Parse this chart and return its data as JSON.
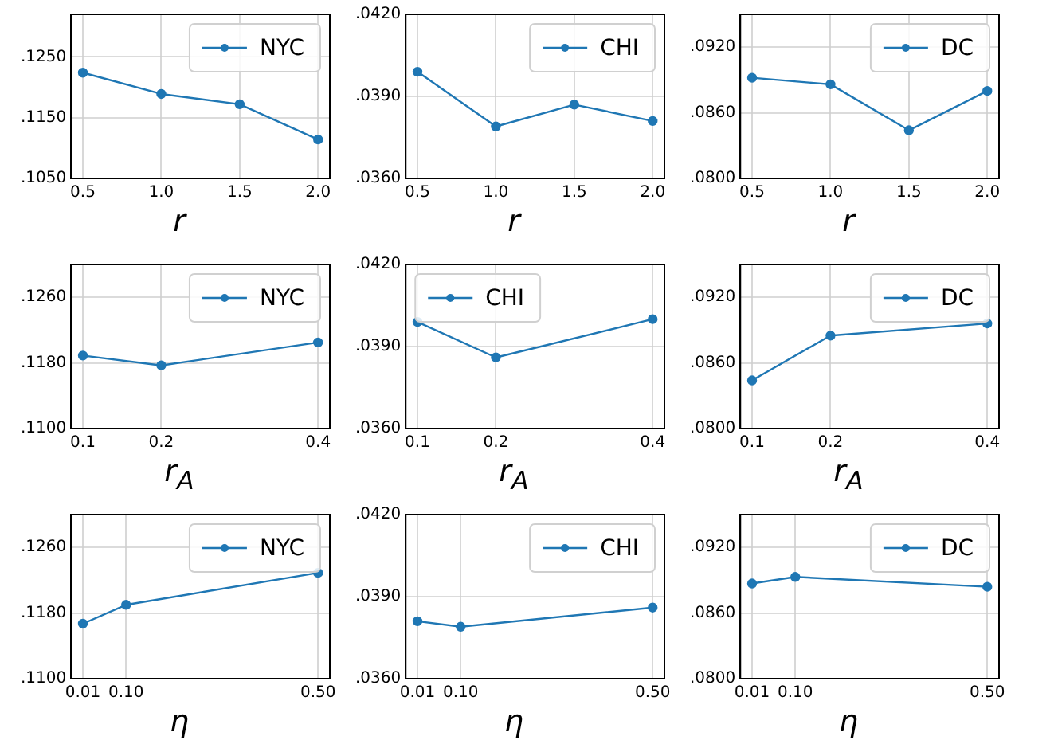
{
  "chart_data": [
    {
      "type": "line",
      "x": [
        0.5,
        1.0,
        1.5,
        2.0
      ],
      "series": [
        {
          "name": "NYC",
          "color": "#1f77b4",
          "values": [
            0.1224,
            0.1189,
            0.1172,
            0.1114
          ]
        }
      ],
      "xlabel": "r",
      "xlim": [
        0.425,
        2.075
      ],
      "xticks": [
        0.5,
        {
          "value": 1,
          "label": "1.0"
        },
        1.5,
        {
          "value": 2,
          "label": "2.0"
        }
      ],
      "ylim": [
        0.105,
        0.132
      ],
      "yticks": [
        {
          "value": 0.105,
          "label": ".1050"
        },
        {
          "value": 0.115,
          "label": ".1150"
        },
        {
          "value": 0.125,
          "label": ".1250"
        }
      ],
      "grid": true,
      "legend": "top right",
      "marker": "circle"
    },
    {
      "type": "line",
      "x": [
        0.5,
        1.0,
        1.5,
        2.0
      ],
      "series": [
        {
          "name": "CHI",
          "color": "#1f77b4",
          "values": [
            0.0399,
            0.0379,
            0.0387,
            0.0381
          ]
        }
      ],
      "xlabel": "r",
      "xlim": [
        0.425,
        2.075
      ],
      "xticks": [
        0.5,
        {
          "value": 1,
          "label": "1.0"
        },
        1.5,
        {
          "value": 2,
          "label": "2.0"
        }
      ],
      "ylim": [
        0.036,
        0.042
      ],
      "yticks": [
        {
          "value": 0.036,
          "label": ".0360"
        },
        {
          "value": 0.039,
          "label": ".0390"
        },
        {
          "value": 0.042,
          "label": ".0420"
        }
      ],
      "grid": true,
      "legend": "top right",
      "marker": "circle"
    },
    {
      "type": "line",
      "x": [
        0.5,
        1.0,
        1.5,
        2.0
      ],
      "series": [
        {
          "name": "DC",
          "color": "#1f77b4",
          "values": [
            0.0892,
            0.0886,
            0.0844,
            0.088
          ]
        }
      ],
      "xlabel": "r",
      "xlim": [
        0.425,
        2.075
      ],
      "xticks": [
        0.5,
        {
          "value": 1,
          "label": "1.0"
        },
        1.5,
        {
          "value": 2,
          "label": "2.0"
        }
      ],
      "ylim": [
        0.08,
        0.095
      ],
      "yticks": [
        {
          "value": 0.08,
          "label": ".0800"
        },
        {
          "value": 0.086,
          "label": ".0860"
        },
        {
          "value": 0.092,
          "label": ".0920"
        }
      ],
      "grid": true,
      "legend": "top right",
      "marker": "circle"
    },
    {
      "type": "line",
      "x": [
        0.1,
        0.2,
        0.4
      ],
      "series": [
        {
          "name": "NYC",
          "color": "#1f77b4",
          "values": [
            0.1189,
            0.1177,
            0.1205
          ]
        }
      ],
      "xlabel": "r$_{A}$",
      "xlim": [
        0.085,
        0.415
      ],
      "xticks": [
        0.1,
        0.2,
        0.4
      ],
      "ylim": [
        0.11,
        0.13
      ],
      "yticks": [
        {
          "value": 0.11,
          "label": ".1100"
        },
        {
          "value": 0.118,
          "label": ".1180"
        },
        {
          "value": 0.126,
          "label": ".1260"
        }
      ],
      "grid": true,
      "legend": "top right",
      "marker": "circle"
    },
    {
      "type": "line",
      "x": [
        0.1,
        0.2,
        0.4
      ],
      "series": [
        {
          "name": "CHI",
          "color": "#1f77b4",
          "values": [
            0.0399,
            0.0386,
            0.04
          ]
        }
      ],
      "xlabel": "r$_{A}$",
      "xlim": [
        0.085,
        0.415
      ],
      "xticks": [
        0.1,
        0.2,
        0.4
      ],
      "ylim": [
        0.036,
        0.042
      ],
      "yticks": [
        {
          "value": 0.036,
          "label": ".0360"
        },
        {
          "value": 0.039,
          "label": ".0390"
        },
        {
          "value": 0.042,
          "label": ".0420"
        }
      ],
      "grid": true,
      "legend": "top left",
      "marker": "circle"
    },
    {
      "type": "line",
      "x": [
        0.1,
        0.2,
        0.4
      ],
      "series": [
        {
          "name": "DC",
          "color": "#1f77b4",
          "values": [
            0.0844,
            0.0885,
            0.0896
          ]
        }
      ],
      "xlabel": "r$_{A}$",
      "xlim": [
        0.085,
        0.415
      ],
      "xticks": [
        0.1,
        0.2,
        0.4
      ],
      "ylim": [
        0.08,
        0.095
      ],
      "yticks": [
        {
          "value": 0.08,
          "label": ".0800"
        },
        {
          "value": 0.086,
          "label": ".0860"
        },
        {
          "value": 0.092,
          "label": ".0920"
        }
      ],
      "grid": true,
      "legend": "top right",
      "marker": "circle"
    },
    {
      "type": "line",
      "x": [
        0.01,
        0.1,
        0.5
      ],
      "series": [
        {
          "name": "NYC",
          "color": "#1f77b4",
          "values": [
            0.1167,
            0.119,
            0.1229
          ]
        }
      ],
      "xlabel": "η",
      "xlim": [
        -0.0145,
        0.5245
      ],
      "xticks": [
        0.01,
        {
          "value": 0.1,
          "label": "0.10"
        },
        {
          "value": 0.5,
          "label": "0.50"
        }
      ],
      "ylim": [
        0.11,
        0.13
      ],
      "yticks": [
        {
          "value": 0.11,
          "label": ".1100"
        },
        {
          "value": 0.118,
          "label": ".1180"
        },
        {
          "value": 0.126,
          "label": ".1260"
        }
      ],
      "grid": true,
      "legend": "top right",
      "marker": "circle"
    },
    {
      "type": "line",
      "x": [
        0.01,
        0.1,
        0.5
      ],
      "series": [
        {
          "name": "CHI",
          "color": "#1f77b4",
          "values": [
            0.0381,
            0.0379,
            0.0386
          ]
        }
      ],
      "xlabel": "η",
      "xlim": [
        -0.0145,
        0.5245
      ],
      "xticks": [
        0.01,
        {
          "value": 0.1,
          "label": "0.10"
        },
        {
          "value": 0.5,
          "label": "0.50"
        }
      ],
      "ylim": [
        0.036,
        0.042
      ],
      "yticks": [
        {
          "value": 0.036,
          "label": ".0360"
        },
        {
          "value": 0.039,
          "label": ".0390"
        },
        {
          "value": 0.042,
          "label": ".0420"
        }
      ],
      "grid": true,
      "legend": "top right",
      "marker": "circle"
    },
    {
      "type": "line",
      "x": [
        0.01,
        0.1,
        0.5
      ],
      "series": [
        {
          "name": "DC",
          "color": "#1f77b4",
          "values": [
            0.0887,
            0.0893,
            0.0884
          ]
        }
      ],
      "xlabel": "η",
      "xlim": [
        -0.0145,
        0.5245
      ],
      "xticks": [
        0.01,
        {
          "value": 0.1,
          "label": "0.10"
        },
        {
          "value": 0.5,
          "label": "0.50"
        }
      ],
      "ylim": [
        0.08,
        0.095
      ],
      "yticks": [
        {
          "value": 0.08,
          "label": ".0800"
        },
        {
          "value": 0.086,
          "label": ".0860"
        },
        {
          "value": 0.092,
          "label": ".0920"
        }
      ],
      "grid": true,
      "legend": "top right",
      "marker": "circle"
    }
  ]
}
